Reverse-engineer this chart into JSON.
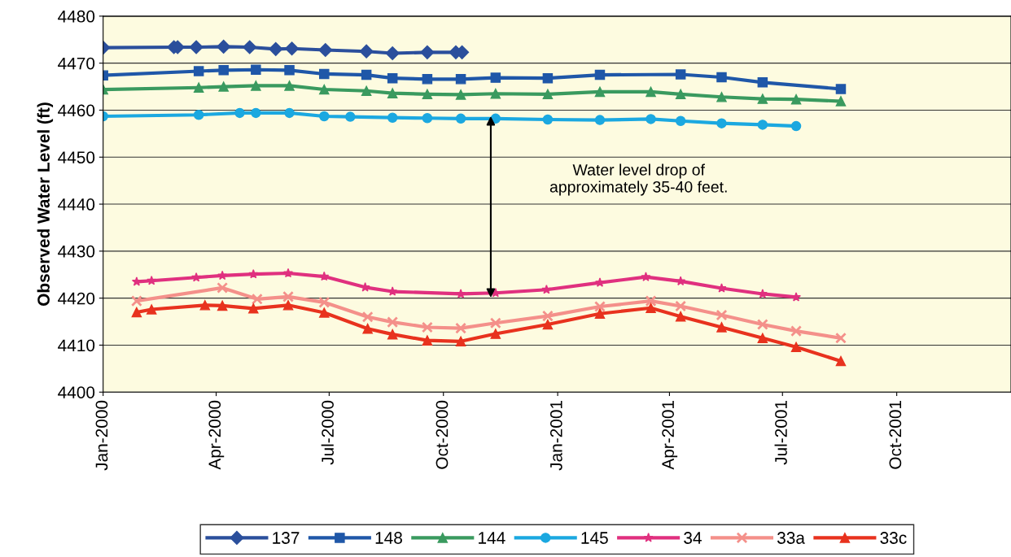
{
  "chart_data": {
    "type": "line",
    "ylabel": "Observed Water Level (ft)",
    "xlim": [
      "2000-01-01",
      "2002-01-01"
    ],
    "xticks": [
      {
        "value": "2000-01-01",
        "label": "Jan-2000"
      },
      {
        "value": "2000-04-01",
        "label": "Apr-2000"
      },
      {
        "value": "2000-07-01",
        "label": "Jul-2000"
      },
      {
        "value": "2000-10-01",
        "label": "Oct-2000"
      },
      {
        "value": "2001-01-01",
        "label": "Jan-2001"
      },
      {
        "value": "2001-04-01",
        "label": "Apr-2001"
      },
      {
        "value": "2001-07-01",
        "label": "Jul-2001"
      },
      {
        "value": "2001-10-01",
        "label": "Oct-2001"
      }
    ],
    "ylim": [
      4400,
      4480
    ],
    "yticks": [
      4400,
      4410,
      4420,
      4430,
      4440,
      4450,
      4460,
      4470,
      4480
    ],
    "grid": "y",
    "legend": "bottom",
    "line_style": "solid",
    "annotations": [
      "Water level drop of\napproximately 35-40 feet."
    ],
    "series": [
      {
        "name": "137",
        "color": "#2b4f9c",
        "marker": "diamond",
        "x": [
          "2000-01-01",
          "2000-02-27",
          "2000-03-01",
          "2000-03-16",
          "2000-04-07",
          "2000-04-28",
          "2000-05-19",
          "2000-06-01",
          "2000-06-28",
          "2000-07-31",
          "2000-08-21",
          "2000-09-18",
          "2000-10-11",
          "2000-10-16"
        ],
        "values": [
          4473.3,
          4473.4,
          4473.4,
          4473.4,
          4473.5,
          4473.4,
          4473.0,
          4473.1,
          4472.8,
          4472.5,
          4472.1,
          4472.3,
          4472.3,
          4472.3
        ]
      },
      {
        "name": "148",
        "color": "#1f57a8",
        "marker": "square",
        "x": [
          "2000-01-01",
          "2000-03-18",
          "2000-04-07",
          "2000-05-03",
          "2000-05-30",
          "2000-06-27",
          "2000-07-31",
          "2000-08-21",
          "2000-09-18",
          "2000-10-15",
          "2000-11-12",
          "2000-12-24",
          "2001-02-04",
          "2001-04-10",
          "2001-05-13",
          "2001-06-15",
          "2001-08-17"
        ],
        "values": [
          4467.4,
          4468.3,
          4468.5,
          4468.6,
          4468.5,
          4467.7,
          4467.5,
          4466.8,
          4466.6,
          4466.6,
          4466.9,
          4466.8,
          4467.5,
          4467.6,
          4467.0,
          4465.9,
          4464.5
        ]
      },
      {
        "name": "144",
        "color": "#3a9a5f",
        "marker": "triangle",
        "x": [
          "2000-01-01",
          "2000-03-18",
          "2000-04-07",
          "2000-05-03",
          "2000-05-30",
          "2000-06-27",
          "2000-07-31",
          "2000-08-21",
          "2000-09-18",
          "2000-10-15",
          "2000-11-12",
          "2000-12-24",
          "2001-02-04",
          "2001-03-17",
          "2001-04-10",
          "2001-05-13",
          "2001-06-15",
          "2001-07-12",
          "2001-08-17"
        ],
        "values": [
          4464.4,
          4464.8,
          4465.0,
          4465.2,
          4465.2,
          4464.4,
          4464.1,
          4463.6,
          4463.4,
          4463.3,
          4463.5,
          4463.4,
          4463.9,
          4463.9,
          4463.4,
          4462.8,
          4462.4,
          4462.3,
          4461.9
        ]
      },
      {
        "name": "145",
        "color": "#1ba8e0",
        "marker": "circle",
        "x": [
          "2000-01-01",
          "2000-03-18",
          "2000-04-20",
          "2000-05-03",
          "2000-05-30",
          "2000-06-27",
          "2000-07-18",
          "2000-08-21",
          "2000-09-18",
          "2000-10-15",
          "2000-11-12",
          "2000-12-24",
          "2001-02-04",
          "2001-03-17",
          "2001-04-10",
          "2001-05-13",
          "2001-06-15",
          "2001-07-12"
        ],
        "values": [
          4458.7,
          4459.0,
          4459.4,
          4459.4,
          4459.4,
          4458.7,
          4458.6,
          4458.4,
          4458.3,
          4458.2,
          4458.2,
          4458.0,
          4457.9,
          4458.1,
          4457.7,
          4457.2,
          4456.9,
          4456.6
        ]
      },
      {
        "name": "34",
        "color": "#e0307f",
        "marker": "star",
        "x": [
          "2000-01-28",
          "2000-02-09",
          "2000-03-16",
          "2000-04-06",
          "2000-05-01",
          "2000-05-29",
          "2000-06-27",
          "2000-07-30",
          "2000-08-21",
          "2000-10-15",
          "2000-11-12",
          "2000-12-23",
          "2001-02-04",
          "2001-03-13",
          "2001-04-10",
          "2001-05-13",
          "2001-06-15",
          "2001-07-12"
        ],
        "values": [
          4423.5,
          4423.7,
          4424.4,
          4424.8,
          4425.1,
          4425.3,
          4424.6,
          4422.3,
          4421.4,
          4420.9,
          4421.1,
          4421.8,
          4423.3,
          4424.5,
          4423.6,
          4422.1,
          4420.9,
          4420.2
        ]
      },
      {
        "name": "33a",
        "color": "#f4908a",
        "marker": "cross",
        "x": [
          "2000-01-28",
          "2000-04-06",
          "2000-05-04",
          "2000-05-29",
          "2000-06-27",
          "2000-08-01",
          "2000-08-21",
          "2000-09-18",
          "2000-10-15",
          "2000-11-12",
          "2000-12-24",
          "2001-02-04",
          "2001-03-17",
          "2001-04-10",
          "2001-05-13",
          "2001-06-15",
          "2001-07-12",
          "2001-08-17"
        ],
        "values": [
          4419.4,
          4422.2,
          4419.8,
          4420.3,
          4419.1,
          4416.0,
          4414.9,
          4413.8,
          4413.6,
          4414.7,
          4416.2,
          4418.2,
          4419.4,
          4418.3,
          4416.4,
          4414.4,
          4413.0,
          4411.5
        ]
      },
      {
        "name": "33c",
        "color": "#e8321e",
        "marker": "triangle",
        "x": [
          "2000-01-28",
          "2000-02-09",
          "2000-03-23",
          "2000-04-06",
          "2000-05-01",
          "2000-05-29",
          "2000-06-27",
          "2000-08-01",
          "2000-08-21",
          "2000-09-18",
          "2000-10-15",
          "2000-11-12",
          "2000-12-24",
          "2001-02-04",
          "2001-03-17",
          "2001-04-10",
          "2001-05-13",
          "2001-06-15",
          "2001-07-12",
          "2001-08-17"
        ],
        "values": [
          4417.0,
          4417.6,
          4418.5,
          4418.4,
          4417.8,
          4418.5,
          4416.9,
          4413.5,
          4412.3,
          4411.0,
          4410.8,
          4412.4,
          4414.4,
          4416.7,
          4417.9,
          4416.1,
          4413.8,
          4411.5,
          4409.6,
          4406.6
        ]
      }
    ]
  }
}
